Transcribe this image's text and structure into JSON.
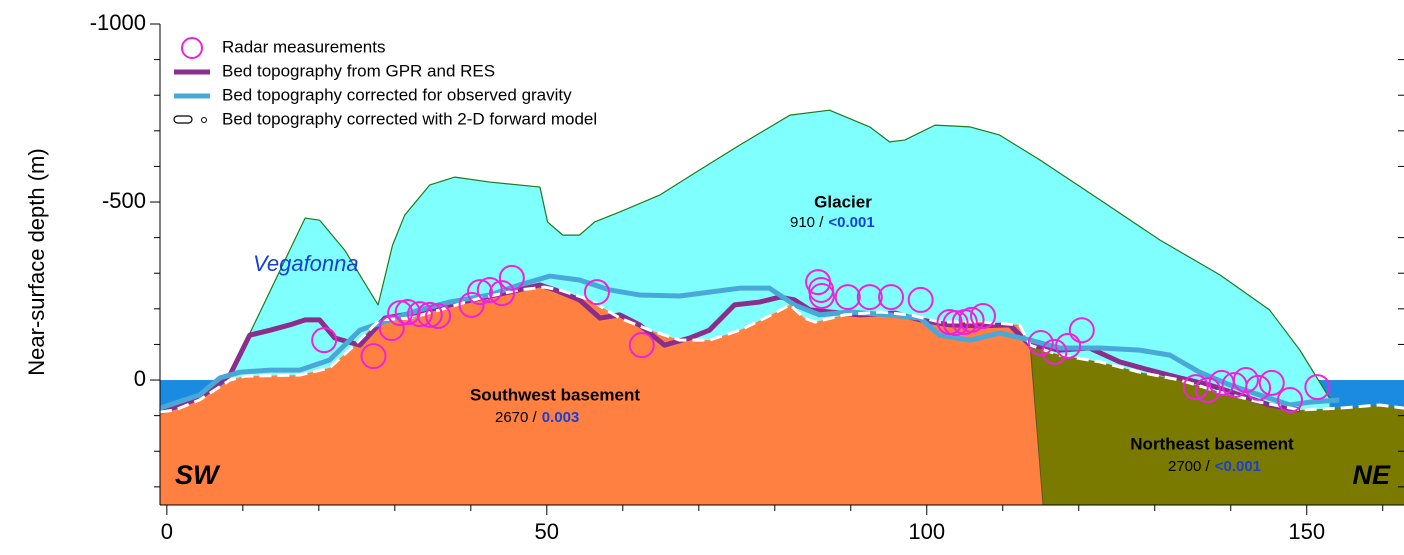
{
  "chart_data": {
    "type": "cross-section",
    "y_label": "Near-surface depth (m)",
    "xlim": [
      -0.9,
      162.8
    ],
    "ylim": [
      -1000,
      351
    ],
    "xticks": [
      0,
      50,
      100,
      150
    ],
    "x_minor_ticks": [
      10,
      20,
      30,
      40,
      60,
      70,
      80,
      90,
      110,
      120,
      130,
      140,
      160
    ],
    "yticks": [
      -1000,
      -500,
      0
    ],
    "y_minor_ticks": [
      -900,
      -800,
      -700,
      -600,
      -400,
      -300,
      -200,
      -100,
      100,
      200,
      300
    ],
    "water": {
      "depth": [
        0,
        90
      ],
      "color": "#1a8be0"
    },
    "glacier": {
      "name": "Glacier",
      "density": "910 /",
      "contrast": "<0.001",
      "color": "#80ffff",
      "outline": "#1f7a1f",
      "x": [
        8.6,
        18.2,
        20.1,
        23.4,
        27.8,
        29.7,
        31.3,
        34.6,
        37.9,
        42.5,
        49.1,
        50.1,
        52.1,
        54.3,
        56.3,
        59.6,
        64.9,
        70.1,
        75.4,
        82.0,
        87.2,
        92.5,
        95.1,
        97.1,
        101.1,
        105.7,
        109.6,
        114.9,
        122.8,
        130.7,
        138.6,
        145.1,
        149.1,
        153.0
      ],
      "values": [
        -28,
        -455,
        -449,
        -365,
        -211,
        -379,
        -463,
        -548,
        -570,
        -556,
        -542,
        -444,
        -407,
        -407,
        -444,
        -472,
        -520,
        -590,
        -660,
        -744,
        -758,
        -711,
        -669,
        -674,
        -716,
        -711,
        -688,
        -618,
        -506,
        -393,
        -295,
        -197,
        -84,
        51
      ]
    },
    "basements": [
      {
        "name": "Southwest basement",
        "density": "2670 /",
        "contrast": "0.003",
        "color": "#ff8040"
      },
      {
        "name": "Northeast basement",
        "density": "2700 /",
        "contrast": "<0.001",
        "color": "#7a7a00"
      }
    ],
    "contact": {
      "x": [
        113.6,
        115.3
      ],
      "depth": [
        -98,
        351
      ]
    },
    "annotation": "Vegafonna",
    "corners": [
      "SW",
      "NE"
    ],
    "radar": {
      "name": "Radar measurements",
      "color": "#ee22dd",
      "x": [
        20.7,
        27.2,
        29.6,
        30.7,
        31.7,
        33.3,
        34.6,
        35.7,
        40.1,
        41.2,
        42.5,
        44.1,
        45.4,
        56.6,
        62.5,
        85.7,
        86.1,
        86.2,
        89.6,
        92.5,
        95.3,
        99.2,
        103.0,
        103.8,
        105.0,
        105.9,
        107.4,
        115.0,
        116.8,
        118.6,
        120.4,
        135.4,
        137.0,
        138.8,
        140.5,
        142.0,
        143.6,
        145.4,
        147.8,
        151.4
      ],
      "values": [
        -112,
        -67,
        -146,
        -188,
        -191,
        -185,
        -183,
        -180,
        -211,
        -247,
        -253,
        -244,
        -287,
        -247,
        -98,
        -275,
        -253,
        -236,
        -233,
        -233,
        -233,
        -225,
        -163,
        -160,
        -163,
        -169,
        -180,
        -104,
        -79,
        -96,
        -140,
        20,
        28,
        8,
        14,
        0,
        22,
        8,
        56,
        20
      ]
    },
    "series": [
      {
        "name": "Bed topography from GPR and RES",
        "color": "#8b2d8b",
        "x": [
          -0.9,
          4.3,
          8.3,
          10.9,
          13.6,
          16.2,
          18.2,
          20.1,
          22.1,
          25.4,
          28.7,
          33.3,
          37.2,
          41.2,
          45.1,
          49.1,
          51.1,
          54.3,
          57.0,
          59.6,
          62.2,
          65.5,
          68.8,
          71.4,
          74.7,
          78.0,
          80.7,
          82.6,
          84.6,
          87.2,
          91.2,
          95.8,
          99.1,
          103.0,
          107.0,
          110.9,
          113.6,
          117.5,
          121.4,
          125.4,
          129.3,
          133.3,
          137.2,
          141.2,
          145.1,
          149.1
        ],
        "values": [
          90,
          51,
          -14,
          -126,
          -140,
          -155,
          -169,
          -169,
          -118,
          -98,
          -174,
          -191,
          -211,
          -230,
          -247,
          -267,
          -253,
          -225,
          -174,
          -183,
          -155,
          -98,
          -118,
          -140,
          -211,
          -219,
          -233,
          -225,
          -197,
          -191,
          -183,
          -188,
          -169,
          -155,
          -152,
          -155,
          -98,
          -84,
          -90,
          -51,
          -28,
          -6,
          14,
          42,
          70,
          84
        ]
      },
      {
        "name": "Bed topography corrected for observed gravity",
        "color": "#4aa8d8",
        "x": [
          -0.9,
          4.3,
          7.0,
          9.6,
          13.6,
          17.5,
          21.4,
          25.4,
          29.3,
          33.3,
          37.2,
          42.5,
          46.4,
          50.4,
          54.3,
          58.3,
          62.2,
          67.5,
          71.4,
          75.4,
          79.3,
          82.6,
          85.9,
          89.9,
          95.1,
          99.1,
          101.7,
          105.7,
          109.6,
          113.6,
          117.5,
          122.8,
          128.0,
          132.0,
          135.9,
          139.9,
          143.8,
          147.8,
          150.4,
          154.3
        ],
        "values": [
          79,
          42,
          -6,
          -22,
          -28,
          -28,
          -56,
          -140,
          -169,
          -197,
          -219,
          -239,
          -267,
          -292,
          -281,
          -253,
          -239,
          -236,
          -247,
          -258,
          -258,
          -211,
          -183,
          -191,
          -183,
          -174,
          -126,
          -112,
          -132,
          -112,
          -90,
          -90,
          -84,
          -70,
          -22,
          14,
          42,
          70,
          62,
          56
        ]
      },
      {
        "name": "Bed topography corrected with 2-D forward model",
        "color": "#ffffff",
        "x": [
          -0.9,
          1.1,
          4.3,
          8.3,
          10.3,
          17.5,
          21.4,
          24.7,
          28.0,
          32.0,
          35.9,
          41.2,
          46.4,
          49.7,
          51.7,
          55.7,
          59.6,
          63.6,
          67.5,
          71.4,
          75.4,
          78.7,
          82.0,
          83.9,
          85.3,
          89.2,
          93.8,
          97.8,
          101.7,
          107.0,
          112.2,
          113.6,
          117.5,
          122.8,
          128.0,
          133.3,
          138.6,
          143.8,
          149.1,
          154.3,
          159.6,
          162.8
        ],
        "values": [
          90,
          84,
          56,
          0,
          -11,
          -14,
          -34,
          -98,
          -169,
          -174,
          -197,
          -230,
          -253,
          -261,
          -253,
          -225,
          -174,
          -140,
          -112,
          -112,
          -140,
          -174,
          -211,
          -174,
          -163,
          -183,
          -191,
          -183,
          -163,
          -163,
          -155,
          -98,
          -70,
          -51,
          -22,
          0,
          34,
          62,
          84,
          79,
          70,
          79
        ]
      }
    ]
  }
}
